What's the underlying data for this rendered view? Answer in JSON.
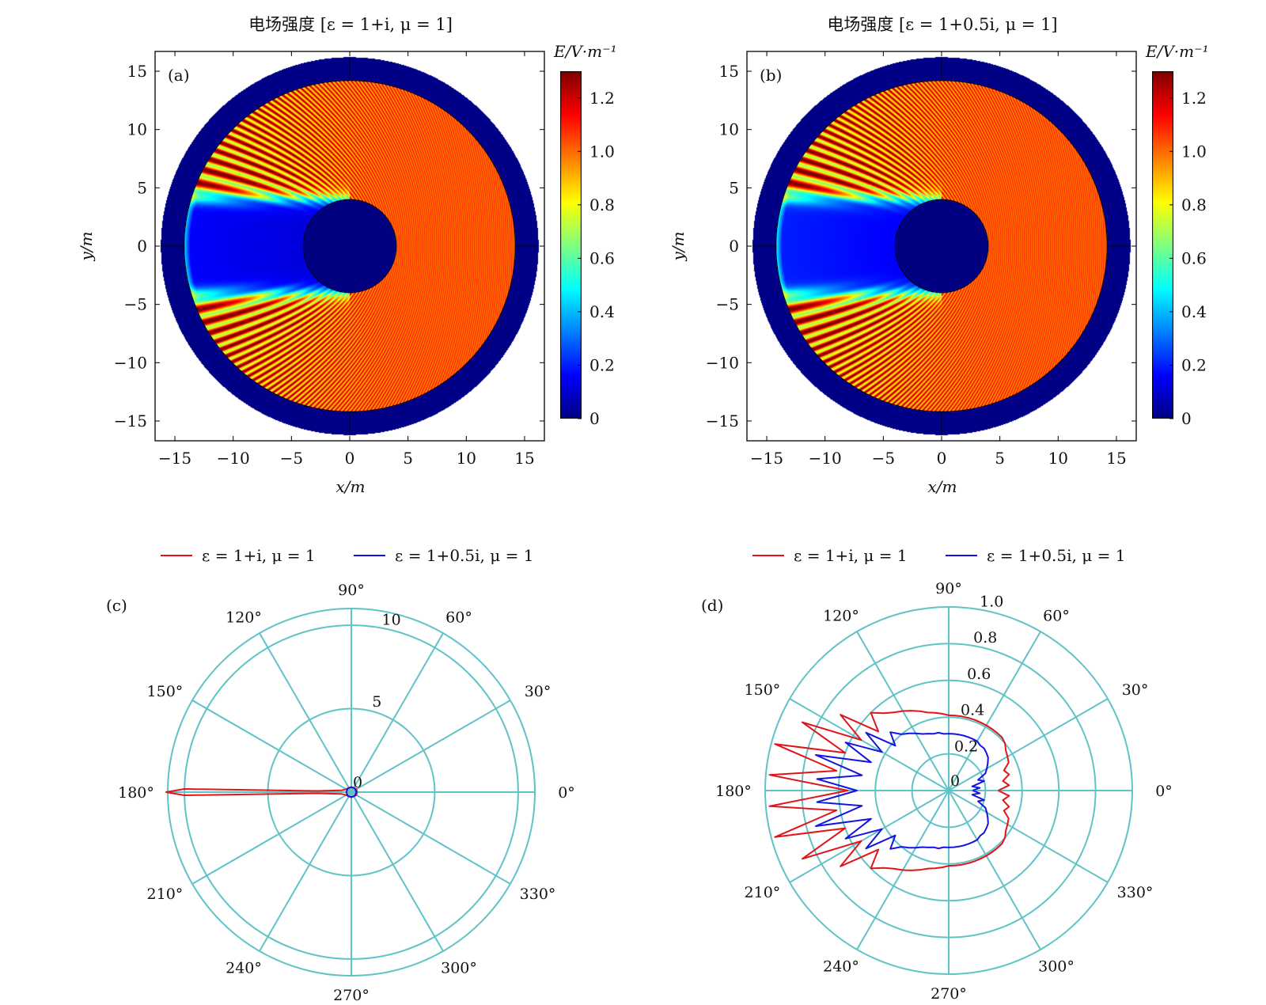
{
  "chart_data": [
    {
      "type": "heatmap",
      "panel_label": "(a)",
      "title": "电场强度 [ε = 1+i, μ = 1]",
      "xlabel": "x/m",
      "ylabel": "y/m",
      "xlim": [
        -16.7,
        16.7
      ],
      "ylim": [
        -16.7,
        16.7
      ],
      "xticks": [
        -15,
        -10,
        -5,
        0,
        5,
        10,
        15
      ],
      "yticks": [
        -15,
        -10,
        -5,
        0,
        5,
        10,
        15
      ],
      "xtick_labels": [
        "−15",
        "−10",
        "−5",
        "0",
        "5",
        "10",
        "15"
      ],
      "ytick_labels": [
        "−15",
        "−10",
        "−5",
        "0",
        "5",
        "10",
        "15"
      ],
      "colorbar": {
        "label": "E/V·m⁻¹",
        "range": [
          0,
          1.3
        ],
        "ticks": [
          0,
          0.2,
          0.4,
          0.6,
          0.8,
          1.0,
          1.2
        ],
        "tick_labels": [
          "0",
          "0.2",
          "0.4",
          "0.6",
          "0.8",
          "1.0",
          "1.2"
        ],
        "colormap": "jet"
      },
      "geometry_m": {
        "cylinder_radius": 4,
        "domain_radius": 14.2,
        "pml_outer_radius": 16.2
      }
    },
    {
      "type": "heatmap",
      "panel_label": "(b)",
      "title": "电场强度 [ε = 1+0.5i, μ = 1]",
      "xlabel": "x/m",
      "ylabel": "y/m",
      "xlim": [
        -16.7,
        16.7
      ],
      "ylim": [
        -16.7,
        16.7
      ],
      "xticks": [
        -15,
        -10,
        -5,
        0,
        5,
        10,
        15
      ],
      "yticks": [
        -15,
        -10,
        -5,
        0,
        5,
        10,
        15
      ],
      "xtick_labels": [
        "−15",
        "−10",
        "−5",
        "0",
        "5",
        "10",
        "15"
      ],
      "ytick_labels": [
        "−15",
        "−10",
        "−5",
        "0",
        "5",
        "10",
        "15"
      ],
      "colorbar": {
        "label": "E/V·m⁻¹",
        "range": [
          0,
          1.3
        ],
        "ticks": [
          0,
          0.2,
          0.4,
          0.6,
          0.8,
          1.0,
          1.2
        ],
        "tick_labels": [
          "0",
          "0.2",
          "0.4",
          "0.6",
          "0.8",
          "1.0",
          "1.2"
        ],
        "colormap": "jet"
      },
      "geometry_m": {
        "cylinder_radius": 4,
        "domain_radius": 14.2,
        "pml_outer_radius": 16.2
      }
    },
    {
      "type": "polar",
      "panel_label": "(c)",
      "rmax": 11,
      "rings": [
        5,
        10,
        11
      ],
      "r_tick_labels": [
        "0",
        "5",
        "10"
      ],
      "r_ticks": [
        0,
        5,
        10
      ],
      "angle_ticks": [
        0,
        30,
        60,
        90,
        120,
        150,
        180,
        210,
        240,
        270,
        300,
        330
      ],
      "angle_tick_labels": [
        "0°",
        "30°",
        "60°",
        "90°",
        "120°",
        "150°",
        "180°",
        "210°",
        "240°",
        "270°",
        "300°",
        "330°"
      ],
      "grid_color": "#5fc3c7",
      "legend_position": "top",
      "series": [
        {
          "name": "ε = 1+i, μ = 1",
          "color": "#e0141a",
          "theta": [
            0,
            30,
            60,
            90,
            120,
            150,
            170,
            178,
            178.9,
            180,
            181.1,
            182,
            190,
            210,
            240,
            270,
            300,
            330,
            360
          ],
          "r": [
            0.35,
            0.35,
            0.3,
            0.3,
            0.3,
            0.35,
            0.6,
            2,
            10,
            11.1,
            10,
            2,
            0.6,
            0.35,
            0.3,
            0.3,
            0.3,
            0.35,
            0.35
          ]
        },
        {
          "name": "ε = 1+0.5i, μ = 1",
          "color": "#1414e0",
          "theta": [
            0,
            45,
            90,
            135,
            180,
            225,
            270,
            315,
            360
          ],
          "r": [
            0.3,
            0.3,
            0.3,
            0.3,
            0.3,
            0.3,
            0.3,
            0.3,
            0.3
          ]
        }
      ]
    },
    {
      "type": "polar",
      "panel_label": "(d)",
      "rmax": 1.0,
      "rings": [
        0.2,
        0.4,
        0.6,
        0.8,
        1.0
      ],
      "r_tick_labels": [
        "0",
        "0.2",
        "0.4",
        "0.6",
        "0.8",
        "1.0"
      ],
      "r_ticks": [
        0,
        0.2,
        0.4,
        0.6,
        0.8,
        1.0
      ],
      "angle_ticks": [
        0,
        30,
        60,
        90,
        120,
        150,
        180,
        210,
        240,
        270,
        300,
        330
      ],
      "angle_tick_labels": [
        "0°",
        "30°",
        "60°",
        "90°",
        "120°",
        "150°",
        "180°",
        "210°",
        "240°",
        "270°",
        "300°",
        "330°"
      ],
      "grid_color": "#5fc3c7",
      "legend_position": "top",
      "series": [
        {
          "name": "ε = 1+i, μ = 1",
          "color": "#e0141a",
          "theta_step": 5,
          "r": [
            0.27,
            0.33,
            0.3,
            0.34,
            0.32,
            0.36,
            0.37,
            0.38,
            0.4,
            0.41,
            0.41,
            0.41,
            0.41,
            0.41,
            0.41,
            0.41,
            0.41,
            0.41,
            0.41,
            0.42,
            0.43,
            0.44,
            0.46,
            0.48,
            0.5,
            0.52,
            0.55,
            0.6,
            0.5,
            0.72,
            0.55,
            0.88,
            0.6,
            0.98,
            0.62,
            0.98,
            0.55,
            0.98,
            0.62,
            0.98,
            0.6,
            0.88,
            0.55,
            0.72,
            0.5,
            0.6,
            0.55,
            0.52,
            0.5,
            0.48,
            0.46,
            0.44,
            0.43,
            0.42,
            0.41,
            0.41,
            0.41,
            0.41,
            0.41,
            0.41,
            0.41,
            0.41,
            0.41,
            0.41,
            0.4,
            0.38,
            0.37,
            0.36,
            0.32,
            0.34,
            0.3,
            0.33
          ]
        },
        {
          "name": "ε = 1+0.5i, μ = 1",
          "color": "#1414e0",
          "theta_step": 5,
          "r": [
            0.13,
            0.17,
            0.13,
            0.2,
            0.17,
            0.22,
            0.24,
            0.26,
            0.28,
            0.29,
            0.3,
            0.3,
            0.31,
            0.31,
            0.31,
            0.31,
            0.31,
            0.31,
            0.31,
            0.31,
            0.32,
            0.32,
            0.33,
            0.34,
            0.36,
            0.38,
            0.4,
            0.45,
            0.38,
            0.55,
            0.42,
            0.62,
            0.45,
            0.75,
            0.48,
            0.72,
            0.5,
            0.72,
            0.48,
            0.75,
            0.45,
            0.62,
            0.42,
            0.55,
            0.38,
            0.45,
            0.4,
            0.38,
            0.36,
            0.34,
            0.33,
            0.32,
            0.32,
            0.31,
            0.31,
            0.31,
            0.31,
            0.31,
            0.31,
            0.31,
            0.31,
            0.3,
            0.3,
            0.29,
            0.28,
            0.26,
            0.24,
            0.22,
            0.17,
            0.2,
            0.13,
            0.17
          ]
        }
      ]
    }
  ]
}
